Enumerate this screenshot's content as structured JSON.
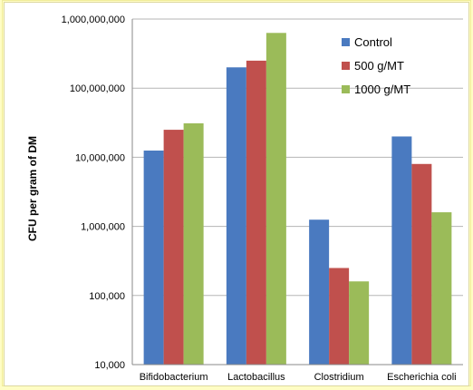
{
  "chart_data": {
    "type": "bar",
    "title": "",
    "xlabel": "",
    "ylabel": "CFU per gram of DM",
    "yscale": "log",
    "ylim": [
      10000,
      1000000000
    ],
    "grid": true,
    "legend_position": "top-right",
    "yticks": [
      {
        "value": 10000,
        "label": "10,000"
      },
      {
        "value": 100000,
        "label": "100,000"
      },
      {
        "value": 1000000,
        "label": "1,000,000"
      },
      {
        "value": 10000000,
        "label": "10,000,000"
      },
      {
        "value": 100000000,
        "label": "100,000,000"
      },
      {
        "value": 1000000000,
        "label": "1,000,000,000"
      }
    ],
    "categories": [
      "Bifidobacterium",
      "Lactobacillus",
      "Clostridium",
      "Escherichia coli"
    ],
    "series": [
      {
        "name": "Control",
        "color": "#4a7ac0",
        "values": [
          12500000,
          200000000,
          1250000,
          20000000
        ]
      },
      {
        "name": "500 g/MT",
        "color": "#c0504d",
        "values": [
          25000000,
          250000000,
          250000,
          8000000
        ]
      },
      {
        "name": "1000 g/MT",
        "color": "#9bbb59",
        "values": [
          31000000,
          630000000,
          160000,
          1600000
        ]
      }
    ]
  }
}
